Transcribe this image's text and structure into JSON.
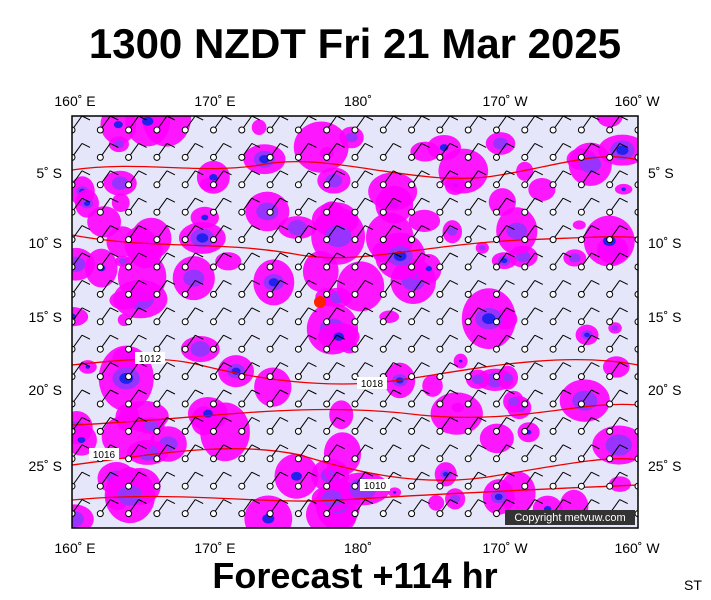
{
  "header": {
    "title": "1300 NZDT Fri 21 Mar 2025"
  },
  "map": {
    "lon_labels": [
      "160˚ E",
      "170˚ E",
      "180˚",
      "170˚ W",
      "160˚ W"
    ],
    "lat_labels": [
      "5˚ S",
      "10˚ S",
      "15˚ S",
      "20˚ S",
      "25˚ S"
    ],
    "isobar_labels": [
      "1012",
      "1018",
      "1016",
      "1010"
    ],
    "copyright": "Copyright metvuw.com"
  },
  "footer": {
    "forecast": "Forecast +114 hr",
    "code": "ST"
  }
}
